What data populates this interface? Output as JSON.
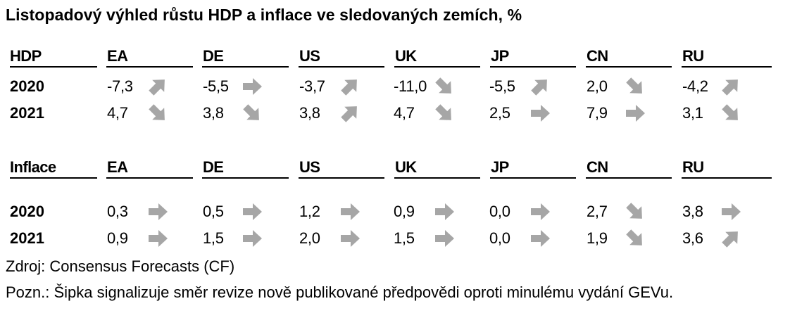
{
  "title": "Listopadový výhled růstu HDP a inflace ve sledovaných zemích, %",
  "countries": [
    "EA",
    "DE",
    "US",
    "UK",
    "JP",
    "CN",
    "RU"
  ],
  "gdp": {
    "label": "HDP",
    "rows": [
      {
        "year": "2020",
        "values": [
          "-7,3",
          "-5,5",
          "-3,7",
          "-11,0",
          "-5,5",
          "2,0",
          "-4,2"
        ],
        "arrows": [
          "up-right-icon",
          "right-icon",
          "up-right-icon",
          "down-right-icon",
          "up-right-icon",
          "down-right-icon",
          "up-right-icon"
        ]
      },
      {
        "year": "2021",
        "values": [
          "4,7",
          "3,8",
          "3,8",
          "4,7",
          "2,5",
          "7,9",
          "3,1"
        ],
        "arrows": [
          "down-right-icon",
          "down-right-icon",
          "up-right-icon",
          "down-right-icon",
          "right-icon",
          "right-icon",
          "down-right-icon"
        ]
      }
    ]
  },
  "inflation": {
    "label": "Inflace",
    "rows": [
      {
        "year": "2020",
        "values": [
          "0,3",
          "0,5",
          "1,2",
          "0,9",
          "0,0",
          "2,7",
          "3,8"
        ],
        "arrows": [
          "right-icon",
          "right-icon",
          "right-icon",
          "right-icon",
          "right-icon",
          "down-right-icon",
          "right-icon"
        ]
      },
      {
        "year": "2021",
        "values": [
          "0,9",
          "1,5",
          "2,0",
          "1,5",
          "0,0",
          "1,9",
          "3,6"
        ],
        "arrows": [
          "right-icon",
          "right-icon",
          "right-icon",
          "right-icon",
          "right-icon",
          "down-right-icon",
          "up-right-icon"
        ]
      }
    ]
  },
  "colors": {
    "arrow": "#a6a6a6",
    "rule": "#000000"
  },
  "source": "Zdroj: Consensus Forecasts (CF)",
  "note": "Pozn.: Šipka signalizuje směr revize nově publikované předpovědi oproti minulému vydání GEVu."
}
